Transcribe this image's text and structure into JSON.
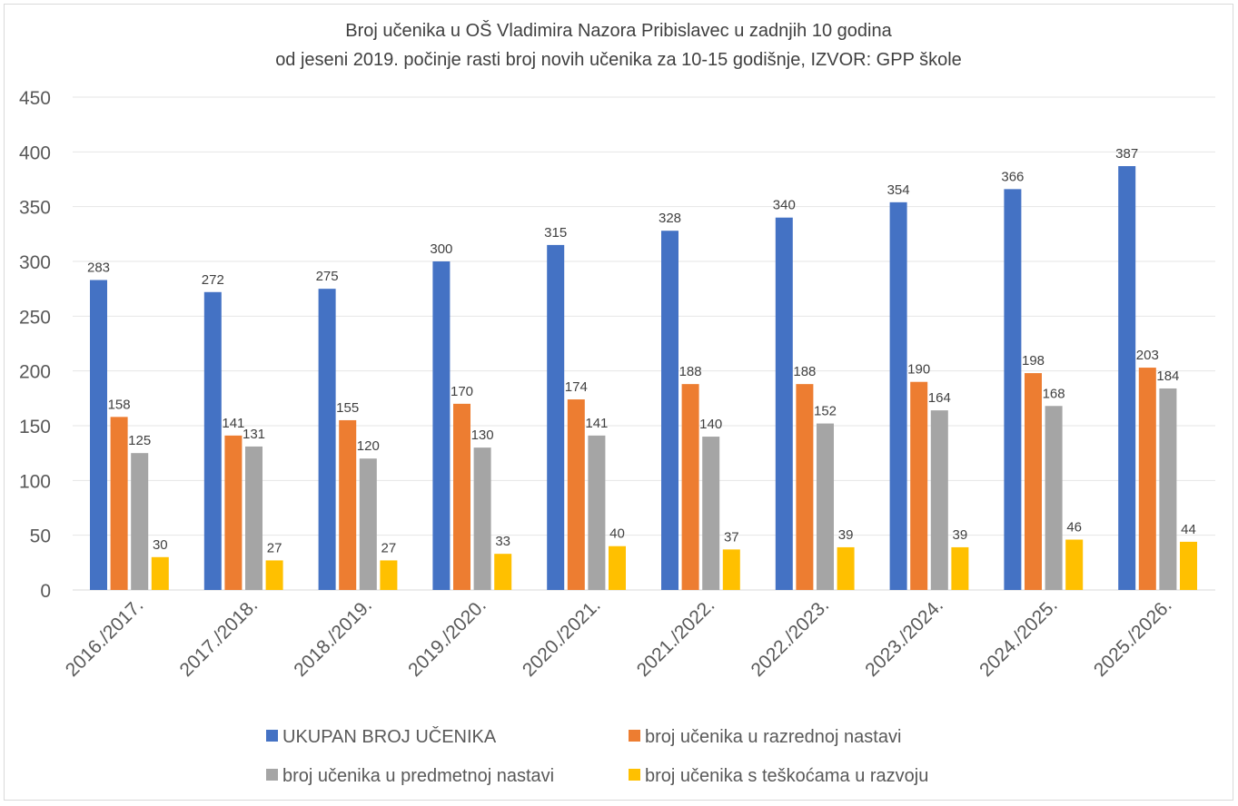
{
  "chart_data": {
    "type": "bar",
    "title": "Broj učenika u OŠ Vladimira Nazora Pribislavec u zadnjih 10 godina",
    "subtitle": "od jeseni 2019. počinje rasti broj novih učenika za 10-15 godišnje, IZVOR: GPP škole",
    "xlabel": "",
    "ylabel": "",
    "ylim": [
      0,
      450
    ],
    "yticks": [
      0,
      50,
      100,
      150,
      200,
      250,
      300,
      350,
      400,
      450
    ],
    "grid": true,
    "legend_position": "bottom",
    "categories": [
      "2016./2017.",
      "2017./2018.",
      "2018./2019.",
      "2019./2020.",
      "2020./2021.",
      "2021./2022.",
      "2022./2023.",
      "2023./2024.",
      "2024./2025.",
      "2025./2026."
    ],
    "series": [
      {
        "name": "UKUPAN BROJ UČENIKA",
        "color": "#4472C4",
        "values": [
          283,
          272,
          275,
          300,
          315,
          328,
          340,
          354,
          366,
          387
        ]
      },
      {
        "name": "broj učenika u razrednoj nastavi",
        "color": "#ED7D31",
        "values": [
          158,
          141,
          155,
          170,
          174,
          188,
          188,
          190,
          198,
          203
        ]
      },
      {
        "name": "broj učenika u predmetnoj nastavi",
        "color": "#A5A5A5",
        "values": [
          125,
          131,
          120,
          130,
          141,
          140,
          152,
          164,
          168,
          184
        ]
      },
      {
        "name": "broj učenika s teškoćama u razvoju",
        "color": "#FFC000",
        "values": [
          30,
          27,
          27,
          33,
          40,
          37,
          39,
          39,
          46,
          44
        ]
      }
    ]
  }
}
